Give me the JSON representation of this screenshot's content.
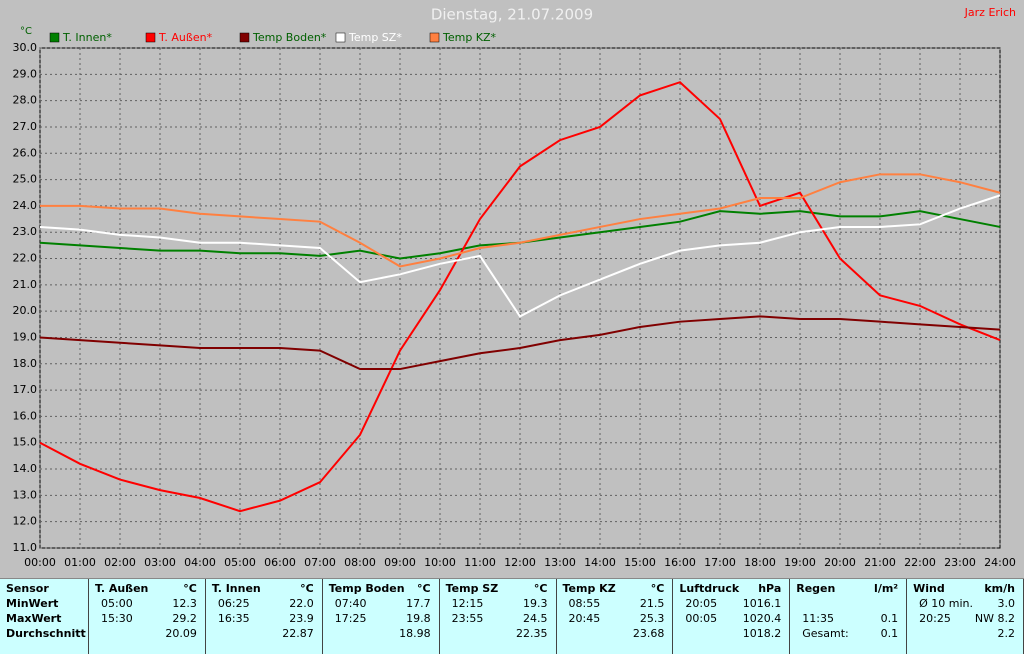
{
  "chart_data": {
    "type": "line",
    "title": "Dienstag, 21.07.2009",
    "author": "Jarz Erich",
    "y_unit": "°C",
    "categories": [
      "00:00",
      "01:00",
      "02:00",
      "03:00",
      "04:00",
      "05:00",
      "06:00",
      "07:00",
      "08:00",
      "09:00",
      "10:00",
      "11:00",
      "12:00",
      "13:00",
      "14:00",
      "15:00",
      "16:00",
      "17:00",
      "18:00",
      "19:00",
      "20:00",
      "21:00",
      "22:00",
      "23:00",
      "24:00"
    ],
    "ylim": [
      11,
      30
    ],
    "yticks": [
      {
        "value": 11,
        "label": "11.0"
      },
      {
        "value": 12,
        "label": "12.0"
      },
      {
        "value": 13,
        "label": "13.0"
      },
      {
        "value": 14,
        "label": "14.0"
      },
      {
        "value": 15,
        "label": "15.0"
      },
      {
        "value": 16,
        "label": "16.0"
      },
      {
        "value": 17,
        "label": "17.0"
      },
      {
        "value": 18,
        "label": "18.0"
      },
      {
        "value": 19,
        "label": "19.0"
      },
      {
        "value": 20,
        "label": "20.0"
      },
      {
        "value": 21,
        "label": "21.0"
      },
      {
        "value": 22,
        "label": "22.0"
      },
      {
        "value": 23,
        "label": "23.0"
      },
      {
        "value": 24,
        "label": "24.0"
      },
      {
        "value": 25,
        "label": "25.0"
      },
      {
        "value": 26,
        "label": "26.0"
      },
      {
        "value": 27,
        "label": "27.0"
      },
      {
        "value": 28,
        "label": "28.0"
      },
      {
        "value": 29,
        "label": "29.0"
      },
      {
        "value": 30,
        "label": "30.0"
      }
    ],
    "grid": true,
    "series": [
      {
        "name": "T. Innen*",
        "color": "#008000",
        "values": [
          22.6,
          22.5,
          22.4,
          22.3,
          22.3,
          22.2,
          22.2,
          22.1,
          22.3,
          22.0,
          22.2,
          22.5,
          22.6,
          22.8,
          23.0,
          23.2,
          23.4,
          23.8,
          23.7,
          23.8,
          23.6,
          23.6,
          23.8,
          23.5,
          23.2
        ]
      },
      {
        "name": "T. Außen*",
        "color": "#ff0000",
        "values": [
          15.0,
          14.2,
          13.6,
          13.2,
          12.9,
          12.4,
          12.8,
          13.5,
          15.3,
          18.5,
          20.8,
          23.5,
          25.5,
          26.5,
          27.0,
          28.2,
          28.7,
          27.3,
          24.0,
          24.5,
          22.0,
          20.6,
          20.2,
          19.5,
          18.9
        ]
      },
      {
        "name": "Temp Boden*",
        "color": "#800000",
        "values": [
          19.0,
          18.9,
          18.8,
          18.7,
          18.6,
          18.6,
          18.6,
          18.5,
          17.8,
          17.8,
          18.1,
          18.4,
          18.6,
          18.9,
          19.1,
          19.4,
          19.6,
          19.7,
          19.8,
          19.7,
          19.7,
          19.6,
          19.5,
          19.4,
          19.3
        ]
      },
      {
        "name": "Temp SZ*",
        "color": "#ffffff",
        "values": [
          23.2,
          23.1,
          22.9,
          22.8,
          22.6,
          22.6,
          22.5,
          22.4,
          21.1,
          21.4,
          21.8,
          22.1,
          19.8,
          20.6,
          21.2,
          21.8,
          22.3,
          22.5,
          22.6,
          23.0,
          23.2,
          23.2,
          23.3,
          23.9,
          24.4
        ]
      },
      {
        "name": "Temp KZ*",
        "color": "#ff8040",
        "values": [
          24.0,
          24.0,
          23.9,
          23.9,
          23.7,
          23.6,
          23.5,
          23.4,
          22.6,
          21.7,
          22.0,
          22.4,
          22.6,
          22.9,
          23.2,
          23.5,
          23.7,
          23.9,
          24.3,
          24.3,
          24.9,
          25.2,
          25.2,
          24.9,
          24.5
        ]
      }
    ]
  },
  "table": {
    "row_labels": [
      "Sensor",
      "MinWert",
      "MaxWert",
      "Durchschnitt"
    ],
    "groups": [
      {
        "name": "T. Außen",
        "unit": "°C",
        "rows": [
          [
            "05:00",
            "12.3"
          ],
          [
            "15:30",
            "29.2"
          ],
          [
            null,
            "20.09"
          ]
        ]
      },
      {
        "name": "T. Innen",
        "unit": "°C",
        "rows": [
          [
            "06:25",
            "22.0"
          ],
          [
            "16:35",
            "23.9"
          ],
          [
            null,
            "22.87"
          ]
        ]
      },
      {
        "name": "Temp Boden",
        "unit": "°C",
        "rows": [
          [
            "07:40",
            "17.7"
          ],
          [
            "17:25",
            "19.8"
          ],
          [
            null,
            "18.98"
          ]
        ]
      },
      {
        "name": "Temp SZ",
        "unit": "°C",
        "rows": [
          [
            "12:15",
            "19.3"
          ],
          [
            "23:55",
            "24.5"
          ],
          [
            null,
            "22.35"
          ]
        ]
      },
      {
        "name": "Temp KZ",
        "unit": "°C",
        "rows": [
          [
            "08:55",
            "21.5"
          ],
          [
            "20:45",
            "25.3"
          ],
          [
            null,
            "23.68"
          ]
        ]
      },
      {
        "name": "Luftdruck",
        "unit": "hPa",
        "rows": [
          [
            "20:05",
            "1016.1"
          ],
          [
            "00:05",
            "1020.4"
          ],
          [
            null,
            "1018.2"
          ]
        ]
      },
      {
        "name": "Regen",
        "unit": "l/m²",
        "rows": [
          [
            null,
            null
          ],
          [
            "11:35",
            "0.1"
          ],
          [
            "Gesamt:",
            "0.1"
          ]
        ]
      },
      {
        "name": "Wind",
        "unit": "km/h",
        "rows": [
          [
            "Ø 10 min.",
            "3.0"
          ],
          [
            "20:25",
            "NW 8.2"
          ],
          [
            null,
            "2.2"
          ]
        ]
      }
    ]
  }
}
